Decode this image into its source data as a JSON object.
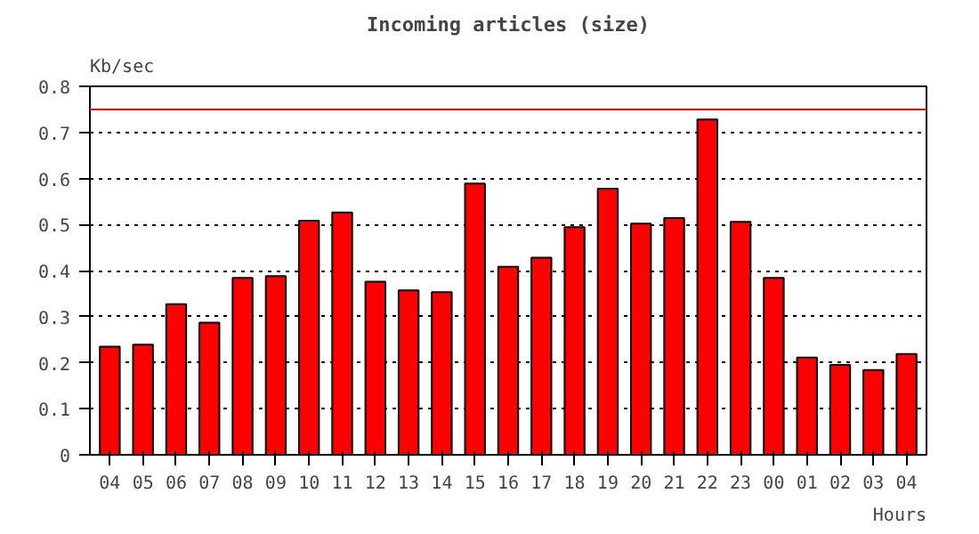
{
  "chart_data": {
    "type": "bar",
    "title": "Incoming articles (size)",
    "xlabel": "Hours",
    "ylabel": "Kb/sec",
    "categories": [
      "04",
      "05",
      "06",
      "07",
      "08",
      "09",
      "10",
      "11",
      "12",
      "13",
      "14",
      "15",
      "16",
      "17",
      "18",
      "19",
      "20",
      "21",
      "22",
      "23",
      "00",
      "01",
      "02",
      "03",
      "04"
    ],
    "values": [
      0.235,
      0.239,
      0.327,
      0.287,
      0.384,
      0.388,
      0.508,
      0.526,
      0.376,
      0.357,
      0.353,
      0.589,
      0.408,
      0.428,
      0.494,
      0.578,
      0.502,
      0.514,
      0.728,
      0.506,
      0.384,
      0.211,
      0.195,
      0.184,
      0.219
    ],
    "color": "#ff0000",
    "ylim": [
      0,
      0.8
    ],
    "yticks": [
      0,
      0.1,
      0.2,
      0.3,
      0.4,
      0.5,
      0.6,
      0.7,
      0.8
    ],
    "grid": "y",
    "ref_lines": [
      {
        "axis": "y",
        "value": 0.75,
        "color": "#ff0000"
      }
    ]
  }
}
